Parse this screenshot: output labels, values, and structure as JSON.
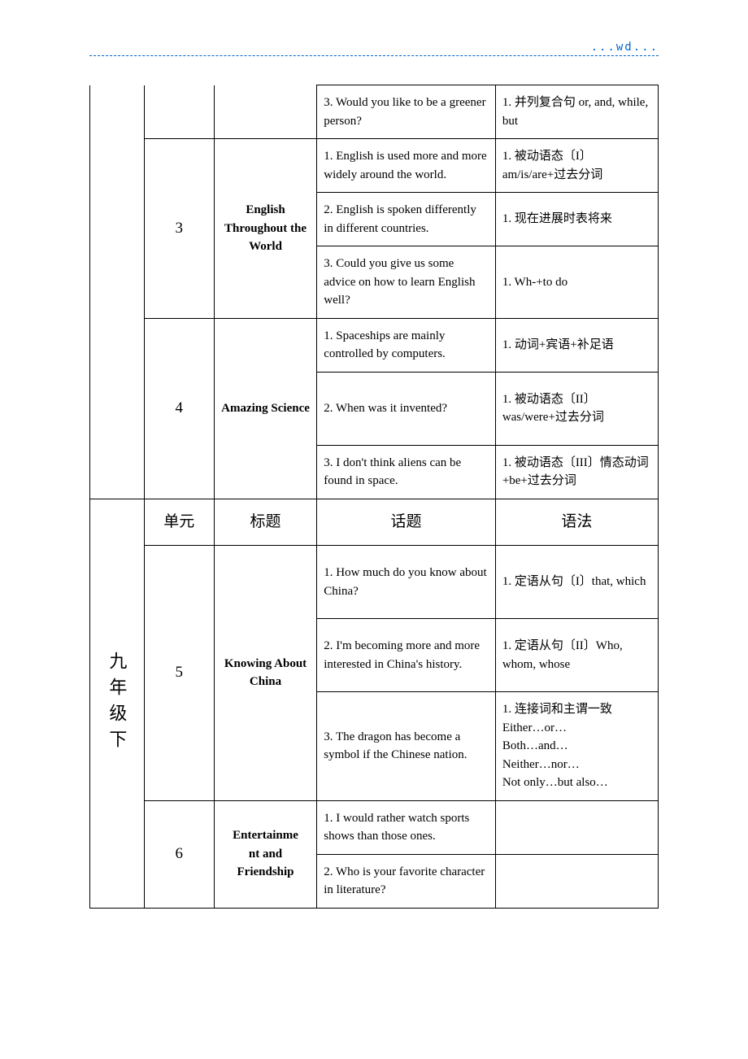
{
  "header": {
    "text": "...wd..."
  },
  "rows": [
    {
      "topic": "3. Would you like to be a greener person?",
      "grammar": "1. 并列复合句 or, and, while, but"
    },
    {
      "unit": "3",
      "title": "English Throughout the World",
      "topic": "1. English is used more and more widely around the world.",
      "grammar": "1. 被动语态〔I〕 am/is/are+过去分词"
    },
    {
      "topic": "2. English is spoken differently in different countries.",
      "grammar": "1. 现在进展时表将来"
    },
    {
      "topic": "3. Could you give us some advice on how to learn English well?",
      "grammar": "1. Wh-+to do"
    },
    {
      "unit": "4",
      "title": "Amazing Science",
      "topic": "1. Spaceships are mainly controlled by computers.",
      "grammar": "1. 动词+宾语+补足语"
    },
    {
      "topic": "2. When was it invented?",
      "grammar": "1. 被动语态〔II〕was/were+过去分词"
    },
    {
      "topic": "3. I don't think aliens can be found in space.",
      "grammar": "1. 被动语态〔III〕情态动词+be+过去分词"
    }
  ],
  "headers": {
    "unit": "单元",
    "title": "标题",
    "topic": "话题",
    "grammar": "语法"
  },
  "grade": "九年级下",
  "rows2": [
    {
      "unit": "5",
      "title": "Knowing About China",
      "topic": "1. How much do you know about China?",
      "grammar": "1. 定语从句〔I〕that, which"
    },
    {
      "topic": "2. I'm becoming more and more interested in China's history.",
      "grammar": "1. 定语从句〔II〕Who, whom, whose"
    },
    {
      "topic": "3. The dragon has become a symbol if the Chinese nation.",
      "grammar": "1. 连接词和主谓一致 Either…or… Both…and… Neither…nor… Not only…but also…"
    },
    {
      "unit": "6",
      "title": "Entertainment and Friendship",
      "topic": "1. I would rather watch sports shows than those ones.",
      "grammar": ""
    },
    {
      "topic": "2. Who is your favorite character in literature?",
      "grammar": ""
    }
  ]
}
